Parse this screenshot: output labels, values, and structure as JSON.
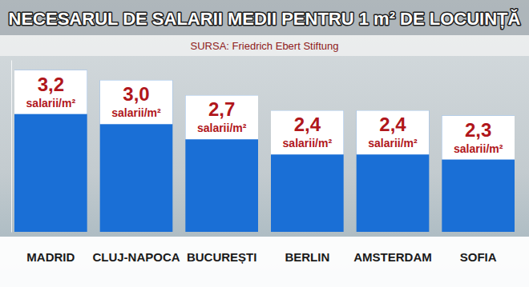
{
  "chart_data": {
    "type": "bar",
    "title": "NECESARUL DE SALARII MEDII PENTRU 1 m² DE LOCUINȚĂ",
    "subtitle": "SURSA: Friedrich Ebert Stiftung",
    "categories": [
      "MADRID",
      "CLUJ-NAPOCA",
      "BUCUREȘTI",
      "BERLIN",
      "AMSTERDAM",
      "SOFIA"
    ],
    "values": [
      3.2,
      3.0,
      2.7,
      2.4,
      2.4,
      2.3
    ],
    "value_labels": [
      "3,2 salarii/m²",
      "3,0 salarii/m²",
      "2,7 salarii/m²",
      "2,4 salarii/m²",
      "2,4 salarii/m²",
      "2,3 salarii/m²"
    ],
    "color": "#1a6fd6",
    "ylim": [
      0,
      3.4
    ],
    "grid": false,
    "data_labels": true,
    "tick_labels": "x"
  }
}
